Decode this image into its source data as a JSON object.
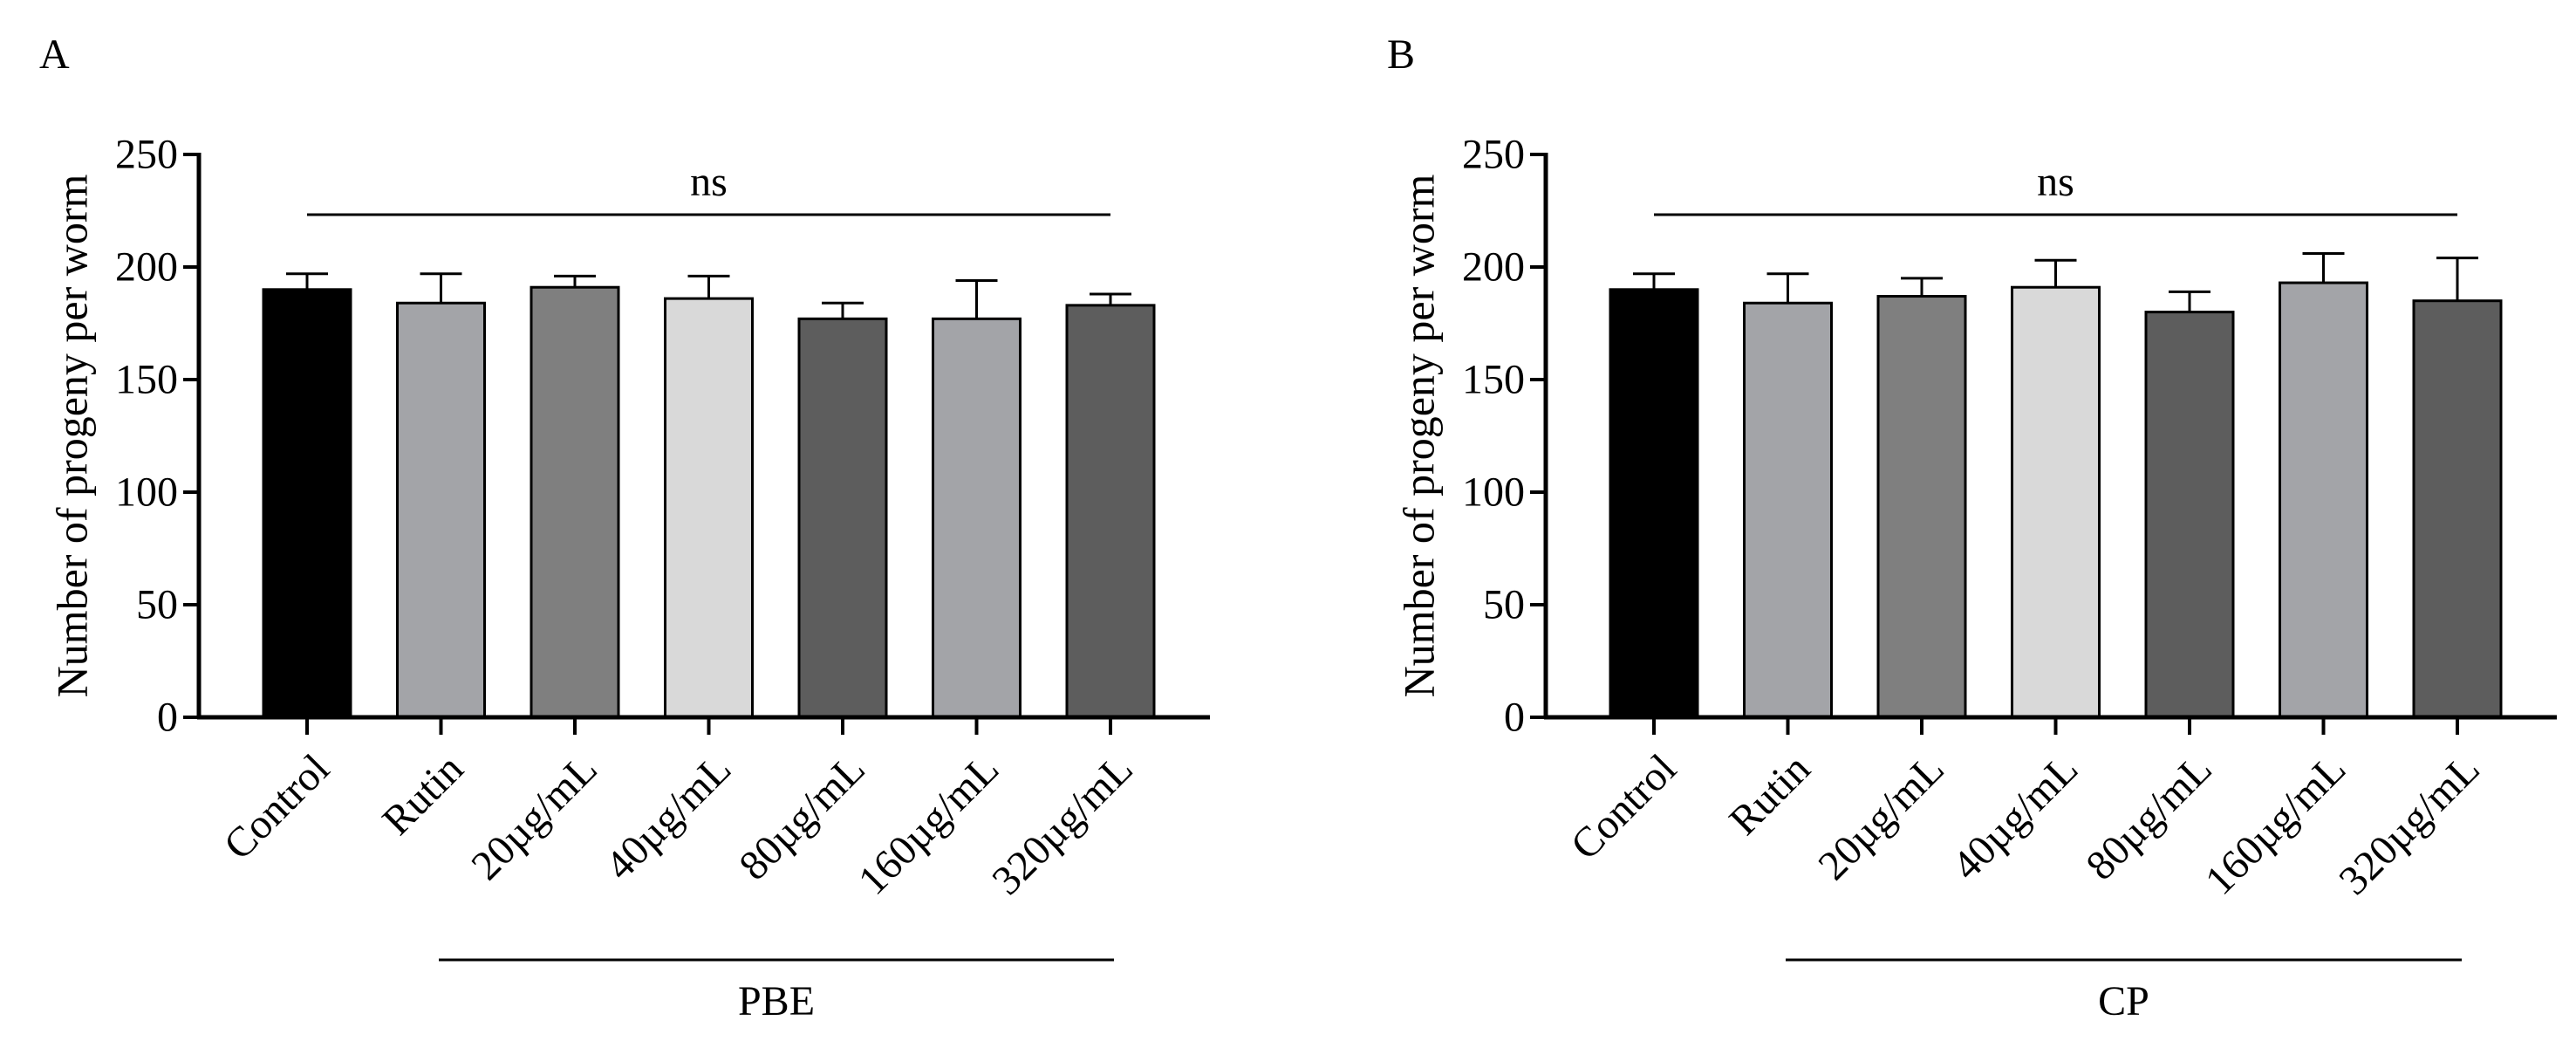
{
  "charts": [
    {
      "panel_label": "A",
      "ns_label": "ns",
      "group_label": "PBE"
    },
    {
      "panel_label": "B",
      "ns_label": "ns",
      "group_label": "CP"
    }
  ],
  "chart_data": [
    {
      "type": "bar",
      "title": "",
      "xlabel": "",
      "ylabel": "Number of progeny per worm",
      "ylim": [
        0,
        250
      ],
      "yticks": [
        0,
        50,
        100,
        150,
        200,
        250
      ],
      "categories": [
        "Control",
        "Rutin",
        "20µg/mL",
        "40µg/mL",
        "80µg/mL",
        "160µg/mL",
        "320µg/mL"
      ],
      "values": [
        190,
        184,
        191,
        186,
        177,
        177,
        183
      ],
      "errors": [
        7,
        13,
        5,
        10,
        7,
        17,
        5
      ],
      "colors": [
        "#000000",
        "#a3a4a8",
        "#7f7f7f",
        "#d9d9d9",
        "#5d5d5d",
        "#a3a4a8",
        "#5d5d5d"
      ],
      "annotation": "ns",
      "group_bracket": {
        "label": "PBE",
        "from": "Rutin",
        "to": "320µg/mL"
      }
    },
    {
      "type": "bar",
      "title": "",
      "xlabel": "",
      "ylabel": "Number of progeny per worm",
      "ylim": [
        0,
        250
      ],
      "yticks": [
        0,
        50,
        100,
        150,
        200,
        250
      ],
      "categories": [
        "Control",
        "Rutin",
        "20µg/mL",
        "40µg/mL",
        "80µg/mL",
        "160µg/mL",
        "320µg/mL"
      ],
      "values": [
        190,
        184,
        187,
        191,
        180,
        193,
        185
      ],
      "errors": [
        7,
        13,
        8,
        12,
        9,
        13,
        19
      ],
      "colors": [
        "#000000",
        "#a3a4a8",
        "#7f7f7f",
        "#d9d9d9",
        "#5d5d5d",
        "#a3a4a8",
        "#5d5d5d"
      ],
      "annotation": "ns",
      "group_bracket": {
        "label": "CP",
        "from": "Rutin",
        "to": "320µg/mL"
      }
    }
  ]
}
